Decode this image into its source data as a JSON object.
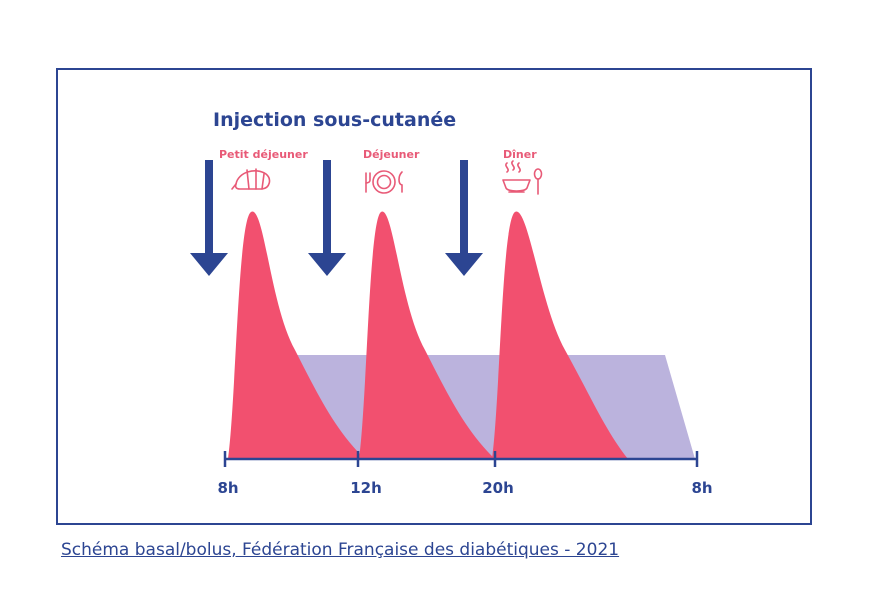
{
  "title": "Injection sous-cutanée",
  "meals": [
    {
      "label": "Petit déjeuner",
      "icon": "croissant-icon"
    },
    {
      "label": "Déjeuner",
      "icon": "plate-cutlery-icon"
    },
    {
      "label": "Dîner",
      "icon": "soup-bowl-icon"
    }
  ],
  "time_axis": {
    "ticks": [
      "8h",
      "12h",
      "20h",
      "8h"
    ]
  },
  "caption": "Schéma basal/bolus, Fédération Française des diabétiques - 2021",
  "colors": {
    "frame": "#2c4592",
    "title": "#2c4592",
    "injection_arrow": "#2c4592",
    "bolus": "#f2506f",
    "basal": "#bbb3dd",
    "meal": "#e85a77",
    "axis": "#2c4592"
  }
}
